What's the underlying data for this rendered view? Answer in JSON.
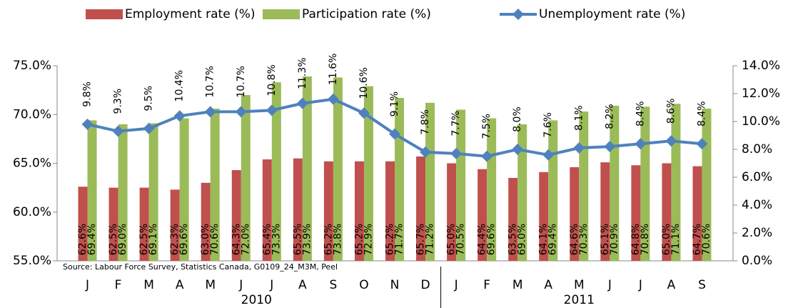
{
  "chart_data": {
    "type": "bar_line",
    "categories": [
      "J",
      "F",
      "M",
      "A",
      "M",
      "J",
      "J",
      "A",
      "S",
      "O",
      "N",
      "D",
      "J",
      "F",
      "M",
      "A",
      "M",
      "J",
      "J",
      "A",
      "S"
    ],
    "groups": [
      {
        "label": "2010",
        "count": 12
      },
      {
        "label": "2011",
        "count": 9
      }
    ],
    "series": [
      {
        "name": "Employment rate (%)",
        "type": "bar",
        "color": "#c0504d",
        "values": [
          62.6,
          62.5,
          62.5,
          62.3,
          63.0,
          64.3,
          65.4,
          65.5,
          65.2,
          65.2,
          65.2,
          65.7,
          65.0,
          64.4,
          63.5,
          64.1,
          64.6,
          65.1,
          64.8,
          65.0,
          64.7
        ],
        "value_labels": [
          "62.6%",
          "62.5%",
          "62.5%",
          "62.3%",
          "63.0%",
          "64.3%",
          "65.4%",
          "65.5%",
          "65.2%",
          "65.2%",
          "65.2%",
          "65.7%",
          "65.0%",
          "64.4%",
          "63.5%",
          "64.1%",
          "64.6%",
          "65.1%",
          "64.8%",
          "65.0%",
          "64.7%"
        ]
      },
      {
        "name": "Participation rate (%)",
        "type": "bar",
        "color": "#9bbb59",
        "values": [
          69.4,
          69.0,
          69.1,
          69.6,
          70.6,
          72.0,
          73.3,
          73.9,
          73.8,
          72.9,
          71.7,
          71.2,
          70.5,
          69.6,
          69.0,
          69.4,
          70.3,
          70.9,
          70.8,
          71.1,
          70.6
        ],
        "value_labels": [
          "69.4%",
          "69.0%",
          "69.1%",
          "69.6%",
          "70.6%",
          "72.0%",
          "73.3%",
          "73.9%",
          "73.8%",
          "72.9%",
          "71.7%",
          "71.2%",
          "70.5%",
          "69.6%",
          "69.0%",
          "69.4%",
          "70.3%",
          "70.9%",
          "70.8%",
          "71.1%",
          "70.6%"
        ]
      },
      {
        "name": "Unemployment rate (%)",
        "type": "line",
        "axis": "y2",
        "color": "#4f81bd",
        "values": [
          9.8,
          9.3,
          9.5,
          10.4,
          10.7,
          10.7,
          10.8,
          11.3,
          11.6,
          10.6,
          9.1,
          7.8,
          7.7,
          7.5,
          8.0,
          7.6,
          8.1,
          8.2,
          8.4,
          8.6,
          8.4
        ],
        "value_labels": [
          "9.8%",
          "9.3%",
          "9.5%",
          "10.4%",
          "10.7%",
          "10.7%",
          "10.8%",
          "11.3%",
          "11.6%",
          "10.6%",
          "9.1%",
          "7.8%",
          "7.7%",
          "7.5%",
          "8.0%",
          "7.6%",
          "8.1%",
          "8.2%",
          "8.4%",
          "8.6%",
          "8.4%"
        ]
      }
    ],
    "ylim": [
      55,
      75
    ],
    "yticks": [
      {
        "value": 55,
        "label": "55.0%"
      },
      {
        "value": 60,
        "label": "60.0%"
      },
      {
        "value": 65,
        "label": "65.0%"
      },
      {
        "value": 70,
        "label": "70.0%"
      },
      {
        "value": 75,
        "label": "75.0%"
      }
    ],
    "y2lim": [
      0,
      14
    ],
    "y2ticks": [
      {
        "value": 0,
        "label": "0.0%"
      },
      {
        "value": 2,
        "label": "2.0%"
      },
      {
        "value": 4,
        "label": "4.0%"
      },
      {
        "value": 6,
        "label": "6.0%"
      },
      {
        "value": 8,
        "label": "8.0%"
      },
      {
        "value": 10,
        "label": "10.0%"
      },
      {
        "value": 12,
        "label": "12.0%"
      },
      {
        "value": 14,
        "label": "14.0%"
      }
    ],
    "annotation": "Source: Labour Force Survey, Statistics Canada, G0109_24_M3M, Peel",
    "legend": "top"
  }
}
